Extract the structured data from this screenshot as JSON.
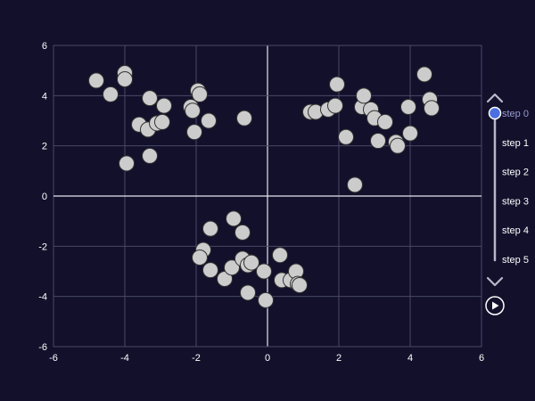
{
  "theme": {
    "background": "#12102b",
    "grid": "#4a4966",
    "zero_line": "#e6e6f0",
    "marker_fill": "#cccccc",
    "marker_stroke": "#333333",
    "slider_track": "#b8b8c8",
    "slider_active": "#4c6fe0",
    "text": "#ffffff",
    "active_step_text": "#9a9bd0"
  },
  "chart_data": {
    "type": "scatter",
    "title": "",
    "xlabel": "",
    "ylabel": "",
    "xlim": [
      -6,
      6
    ],
    "ylim": [
      -6,
      6
    ],
    "x_ticks": [
      -6,
      -4,
      -2,
      0,
      2,
      4,
      6
    ],
    "y_ticks": [
      -6,
      -4,
      -2,
      0,
      2,
      4,
      6
    ],
    "grid": true,
    "series": [
      {
        "points": [
          [
            -4.8,
            4.6
          ],
          [
            -4.4,
            4.05
          ],
          [
            -4.0,
            4.9
          ],
          [
            -4.0,
            4.65
          ],
          [
            -3.95,
            1.3
          ],
          [
            -3.6,
            2.85
          ],
          [
            -3.35,
            2.65
          ],
          [
            -3.3,
            3.9
          ],
          [
            -3.3,
            1.6
          ],
          [
            -3.1,
            2.9
          ],
          [
            -2.95,
            2.95
          ],
          [
            -2.9,
            3.6
          ],
          [
            -2.15,
            3.55
          ],
          [
            -2.1,
            3.4
          ],
          [
            -2.05,
            2.55
          ],
          [
            -1.95,
            4.2
          ],
          [
            -1.9,
            4.05
          ],
          [
            -1.65,
            3.0
          ],
          [
            -0.65,
            3.1
          ],
          [
            1.2,
            3.35
          ],
          [
            1.35,
            3.35
          ],
          [
            1.7,
            3.45
          ],
          [
            1.9,
            3.6
          ],
          [
            1.95,
            4.45
          ],
          [
            2.2,
            2.35
          ],
          [
            2.45,
            0.45
          ],
          [
            2.65,
            3.55
          ],
          [
            2.7,
            4.0
          ],
          [
            2.9,
            3.45
          ],
          [
            3.0,
            3.1
          ],
          [
            3.1,
            2.2
          ],
          [
            3.3,
            2.95
          ],
          [
            3.6,
            2.15
          ],
          [
            3.65,
            2.0
          ],
          [
            3.95,
            3.55
          ],
          [
            4.0,
            2.5
          ],
          [
            4.4,
            4.85
          ],
          [
            4.55,
            3.85
          ],
          [
            4.6,
            3.5
          ],
          [
            -1.6,
            -1.3
          ],
          [
            -1.8,
            -2.15
          ],
          [
            -1.9,
            -2.45
          ],
          [
            -1.6,
            -2.95
          ],
          [
            -1.2,
            -3.3
          ],
          [
            -1.0,
            -2.85
          ],
          [
            -0.95,
            -0.9
          ],
          [
            -0.7,
            -1.45
          ],
          [
            -0.7,
            -2.5
          ],
          [
            -0.55,
            -2.75
          ],
          [
            -0.45,
            -2.65
          ],
          [
            -0.55,
            -3.85
          ],
          [
            -0.1,
            -3.0
          ],
          [
            -0.05,
            -4.15
          ],
          [
            0.35,
            -2.35
          ],
          [
            0.4,
            -3.35
          ],
          [
            0.65,
            -3.35
          ],
          [
            0.8,
            -3.0
          ],
          [
            0.85,
            -3.5
          ],
          [
            0.9,
            -3.55
          ]
        ]
      }
    ]
  },
  "controls": {
    "steps": [
      "step 0",
      "step 1",
      "step 2",
      "step 3",
      "step 4",
      "step 5"
    ],
    "active_step": 0,
    "up_icon": "chevron-up-icon",
    "down_icon": "chevron-down-icon",
    "play_icon": "play-icon"
  }
}
